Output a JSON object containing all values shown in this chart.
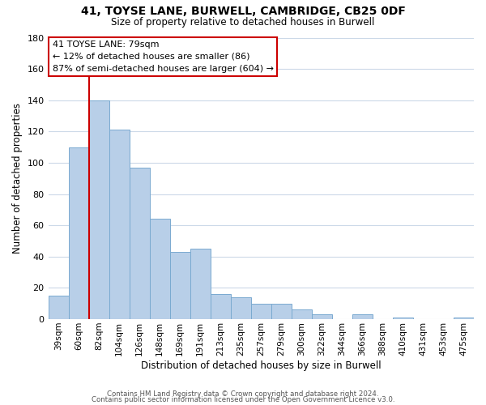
{
  "title": "41, TOYSE LANE, BURWELL, CAMBRIDGE, CB25 0DF",
  "subtitle": "Size of property relative to detached houses in Burwell",
  "xlabel": "Distribution of detached houses by size in Burwell",
  "ylabel": "Number of detached properties",
  "bar_labels": [
    "39sqm",
    "60sqm",
    "82sqm",
    "104sqm",
    "126sqm",
    "148sqm",
    "169sqm",
    "191sqm",
    "213sqm",
    "235sqm",
    "257sqm",
    "279sqm",
    "300sqm",
    "322sqm",
    "344sqm",
    "366sqm",
    "388sqm",
    "410sqm",
    "431sqm",
    "453sqm",
    "475sqm"
  ],
  "bar_values": [
    15,
    110,
    140,
    121,
    97,
    64,
    43,
    45,
    16,
    14,
    10,
    10,
    6,
    3,
    0,
    3,
    0,
    1,
    0,
    0,
    1
  ],
  "bar_color": "#b8cfe8",
  "bar_edge_color": "#7aaad0",
  "highlight_color": "#cc0000",
  "vline_bar_index": 2,
  "ylim": [
    0,
    180
  ],
  "yticks": [
    0,
    20,
    40,
    60,
    80,
    100,
    120,
    140,
    160,
    180
  ],
  "annotation_title": "41 TOYSE LANE: 79sqm",
  "annotation_line1": "← 12% of detached houses are smaller (86)",
  "annotation_line2": "87% of semi-detached houses are larger (604) →",
  "footer1": "Contains HM Land Registry data © Crown copyright and database right 2024.",
  "footer2": "Contains public sector information licensed under the Open Government Licence v3.0.",
  "background_color": "#ffffff",
  "grid_color": "#ccd9e8"
}
